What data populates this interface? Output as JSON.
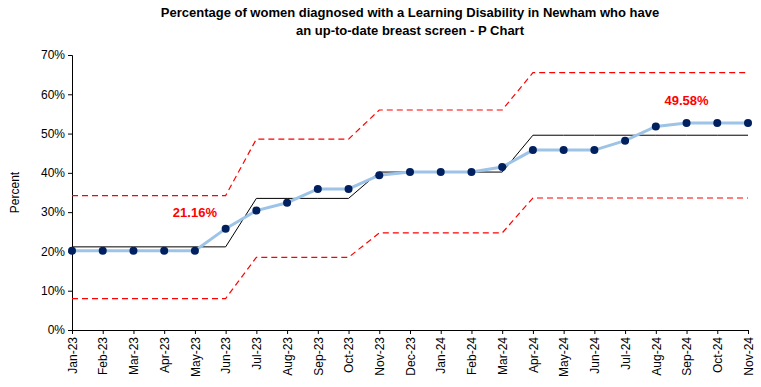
{
  "chart_data": {
    "type": "line",
    "title": [
      "Percentage of women diagnosed with a Learning Disability in Newham who have",
      "an up-to-date breast screen - P Chart"
    ],
    "y_label": "Percent",
    "categories": [
      "Jan-23",
      "Feb-23",
      "Mar-23",
      "Apr-23",
      "May-23",
      "Jun-23",
      "Jul-23",
      "Aug-23",
      "Sep-23",
      "Oct-23",
      "Nov-23",
      "Dec-23",
      "Jan-24",
      "Feb-24",
      "Mar-24",
      "Apr-24",
      "May-24",
      "Jun-24",
      "Jul-24",
      "Aug-24",
      "Sep-24",
      "Oct-24",
      "Nov-24"
    ],
    "series": [
      {
        "color": "#9dc3e6",
        "marker": "circle",
        "line_style": "solid",
        "values": [
          20.2,
          20.2,
          20.2,
          20.2,
          20.2,
          25.8,
          30.4,
          32.4,
          35.9,
          35.9,
          39.4,
          40.2,
          40.2,
          40.2,
          41.5,
          45.8,
          45.8,
          45.8,
          48.2,
          51.8,
          52.7,
          52.7,
          52.7
        ]
      },
      {
        "color": "#000000",
        "marker": "none",
        "line_style": "solid",
        "values": [
          21.16,
          21.16,
          21.16,
          21.16,
          21.16,
          21.16,
          33.5,
          33.5,
          33.5,
          33.5,
          40.2,
          40.2,
          40.2,
          40.2,
          40.2,
          49.58,
          49.58,
          49.58,
          49.58,
          49.58,
          49.58,
          49.58,
          49.58
        ]
      },
      {
        "color": "#ff0000",
        "marker": "none",
        "line_style": "dashed",
        "values": [
          34.2,
          34.2,
          34.2,
          34.2,
          34.2,
          34.2,
          48.6,
          48.6,
          48.6,
          48.6,
          56.0,
          56.0,
          56.0,
          56.0,
          56.0,
          65.5,
          65.5,
          65.5,
          65.5,
          65.5,
          65.5,
          65.5,
          65.5
        ]
      },
      {
        "color": "#ff0000",
        "marker": "none",
        "line_style": "dashed",
        "values": [
          8.0,
          8.0,
          8.0,
          8.0,
          8.0,
          8.0,
          18.5,
          18.5,
          18.5,
          18.5,
          24.7,
          24.7,
          24.7,
          24.7,
          24.7,
          33.6,
          33.6,
          33.6,
          33.6,
          33.6,
          33.6,
          33.6,
          33.6
        ]
      }
    ],
    "annotations": [
      {
        "text": "21.16%",
        "category": "May-23",
        "value": 21.16,
        "color": "#ff0000"
      },
      {
        "text": "49.58%",
        "category": "Sep-24",
        "value": 49.58,
        "color": "#ff0000"
      }
    ],
    "ylim": [
      0,
      70
    ],
    "yticks": [
      {
        "value": 0,
        "label": "0%"
      },
      {
        "value": 10,
        "label": "10%"
      },
      {
        "value": 20,
        "label": "20%"
      },
      {
        "value": 30,
        "label": "30%"
      },
      {
        "value": 40,
        "label": "40%"
      },
      {
        "value": 50,
        "label": "50%"
      },
      {
        "value": 60,
        "label": "60%"
      },
      {
        "value": 70,
        "label": "70%"
      }
    ],
    "grid": false
  }
}
